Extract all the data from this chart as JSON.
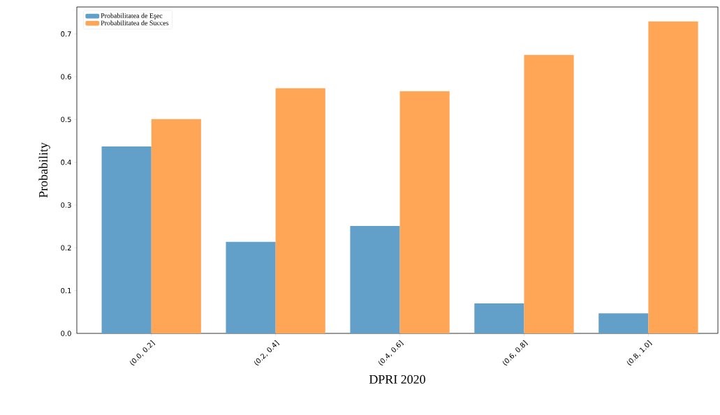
{
  "chart_data": {
    "type": "bar",
    "xlabel": "DPRI 2020",
    "ylabel": "Probability",
    "categories": [
      "(0.0, 0.2]",
      "(0.2, 0.4]",
      "(0.4, 0.6]",
      "(0.6, 0.8]",
      "(0.8, 1.0]"
    ],
    "series": [
      {
        "name": "Probabilitatea de Eşec",
        "color": "#62a0ca",
        "values": [
          0.437,
          0.214,
          0.251,
          0.07,
          0.047
        ]
      },
      {
        "name": "Probabilitatea de Succes",
        "color": "#ffa656",
        "values": [
          0.501,
          0.573,
          0.566,
          0.651,
          0.729
        ]
      }
    ],
    "ylim": [
      0,
      0.763
    ],
    "yticks": [
      {
        "value": 0,
        "label": "0.0"
      },
      0.1,
      0.2,
      0.3,
      0.4,
      0.5,
      0.6,
      0.7
    ],
    "grid": false,
    "legend": "top left"
  }
}
